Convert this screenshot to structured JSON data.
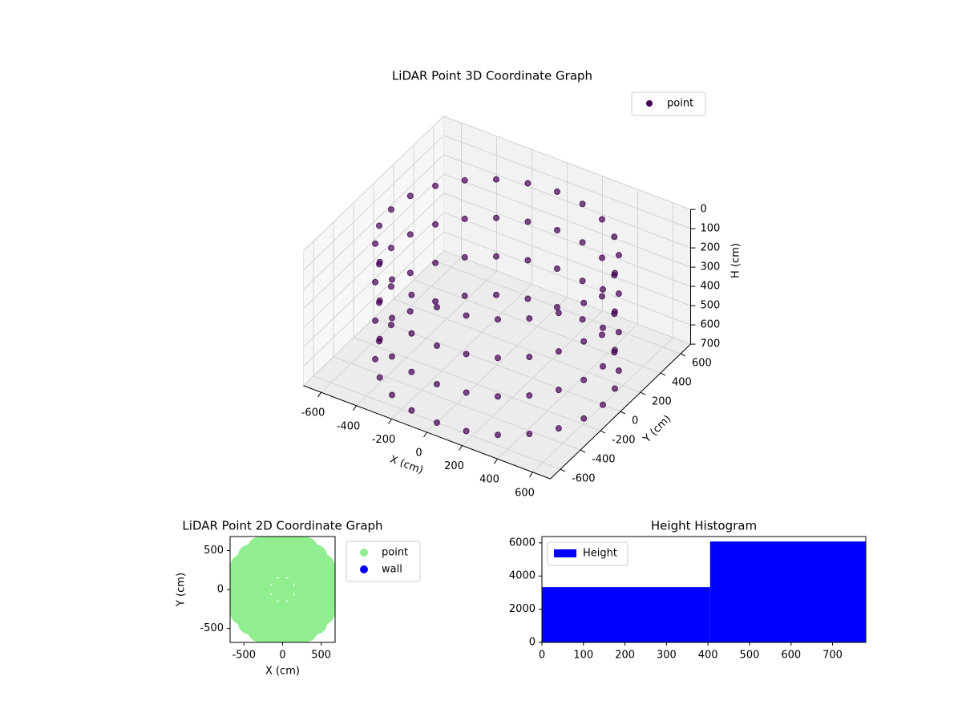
{
  "chart_data": [
    {
      "type": "scatter3d",
      "title": "LiDAR Point 3D Coordinate Graph",
      "xlabel": "X (cm)",
      "ylabel": "Y (cm)",
      "zlabel": "H (cm)",
      "xlim": [
        -700,
        700
      ],
      "ylim": [
        -700,
        700
      ],
      "zlim": [
        700,
        0
      ],
      "xticks": [
        -600,
        -400,
        -200,
        0,
        200,
        400,
        600
      ],
      "yticks": [
        -600,
        -400,
        -200,
        0,
        200,
        400,
        600
      ],
      "zticks": [
        0,
        100,
        200,
        300,
        400,
        500,
        600,
        700
      ],
      "legend": "upper right",
      "grid": true,
      "series": [
        {
          "name": "point",
          "color": "#440154",
          "x": [
            600,
            580,
            520,
            424,
            300,
            155,
            0,
            -155,
            -300,
            -424,
            -520,
            -580,
            -600,
            -580,
            -520,
            -424,
            -300,
            -155,
            0,
            155,
            300,
            424,
            520,
            580,
            600,
            580,
            520,
            424,
            300,
            155,
            0,
            -155,
            -300,
            -424,
            -520,
            -580,
            -600,
            -580,
            -520,
            -424,
            -300,
            -155,
            0,
            155,
            300,
            424,
            520,
            580,
            600,
            580,
            520,
            424,
            300,
            155,
            0,
            -155,
            -300,
            -424,
            -520,
            -580,
            -600,
            -580,
            -520,
            -424,
            -300,
            -155,
            0,
            155,
            300,
            424,
            520,
            580,
            600,
            580,
            520,
            424,
            300,
            155,
            0,
            -155,
            -300,
            -424,
            -520,
            -580,
            -600,
            -580,
            -520,
            -424,
            -300,
            -155,
            0,
            155,
            300,
            424,
            520,
            580
          ],
          "y": [
            0,
            155,
            300,
            424,
            520,
            580,
            600,
            580,
            520,
            424,
            300,
            155,
            0,
            -155,
            -300,
            -424,
            -520,
            -580,
            -600,
            -580,
            -520,
            -424,
            -300,
            -155,
            0,
            155,
            300,
            424,
            520,
            580,
            600,
            580,
            520,
            424,
            300,
            155,
            0,
            -155,
            -300,
            -424,
            -520,
            -580,
            -600,
            -580,
            -520,
            -424,
            -300,
            -155,
            0,
            155,
            300,
            424,
            520,
            580,
            600,
            580,
            520,
            424,
            300,
            155,
            0,
            -155,
            -300,
            -424,
            -520,
            -580,
            -600,
            -580,
            -520,
            -424,
            -300,
            -155,
            0,
            155,
            300,
            424,
            520,
            580,
            600,
            580,
            520,
            424,
            300,
            155,
            0,
            -155,
            -300,
            -424,
            -520,
            -580,
            -600,
            -580,
            -520,
            -424,
            -300,
            -155
          ],
          "z": [
            100,
            100,
            100,
            100,
            100,
            100,
            100,
            100,
            100,
            100,
            100,
            100,
            100,
            100,
            100,
            100,
            100,
            100,
            100,
            100,
            100,
            100,
            100,
            100,
            300,
            300,
            300,
            300,
            300,
            300,
            300,
            300,
            300,
            300,
            300,
            300,
            300,
            300,
            300,
            300,
            300,
            300,
            300,
            300,
            300,
            300,
            300,
            300,
            500,
            500,
            500,
            500,
            500,
            500,
            500,
            500,
            500,
            500,
            500,
            500,
            500,
            500,
            500,
            500,
            500,
            500,
            500,
            500,
            500,
            500,
            500,
            500,
            700,
            700,
            700,
            700,
            700,
            700,
            700,
            700,
            700,
            700,
            700,
            700,
            700,
            700,
            700,
            700,
            700,
            700,
            700,
            700,
            700,
            700,
            700,
            700
          ]
        }
      ]
    },
    {
      "type": "scatter",
      "title": "LiDAR Point 2D Coordinate Graph",
      "xlabel": "X (cm)",
      "ylabel": "Y (cm)",
      "xlim": [
        -680,
        680
      ],
      "ylim": [
        -680,
        680
      ],
      "xticks": [
        -500,
        0,
        500
      ],
      "yticks": [
        -500,
        0,
        500
      ],
      "legend": "outside right",
      "series": [
        {
          "name": "point",
          "color": "#90ee90",
          "x": [
            0,
            300,
            212,
            0,
            -212,
            -300,
            -212,
            0,
            212,
            450,
            390,
            225,
            0,
            -225,
            -390,
            -450,
            -390,
            -225,
            0,
            225,
            390,
            600,
            580,
            520,
            424,
            300,
            155,
            0,
            -155,
            -300,
            -424,
            -520,
            -580,
            -600,
            -580,
            -520,
            -424,
            -300,
            -155,
            0,
            155,
            300,
            424,
            520,
            580
          ],
          "y": [
            0,
            0,
            212,
            300,
            212,
            0,
            -212,
            -300,
            -212,
            0,
            225,
            390,
            450,
            390,
            225,
            0,
            -225,
            -390,
            -450,
            -390,
            -225,
            0,
            155,
            300,
            424,
            520,
            580,
            600,
            580,
            520,
            424,
            300,
            155,
            0,
            -155,
            -300,
            -424,
            -520,
            -580,
            -600,
            -580,
            -520,
            -424,
            -300,
            -155
          ]
        },
        {
          "name": "wall",
          "color": "#0000ff",
          "x": [],
          "y": []
        }
      ]
    },
    {
      "type": "histogram",
      "title": "Height Histogram",
      "bins": [
        0,
        405,
        780
      ],
      "counts": [
        3330,
        6080
      ],
      "xlim": [
        0,
        780
      ],
      "ylim": [
        0,
        6380
      ],
      "xticks": [
        0,
        100,
        200,
        300,
        400,
        500,
        600,
        700
      ],
      "yticks": [
        0,
        2000,
        4000,
        6000
      ],
      "legend": "upper left",
      "series_name": "Height",
      "color": "#0000ff"
    }
  ]
}
